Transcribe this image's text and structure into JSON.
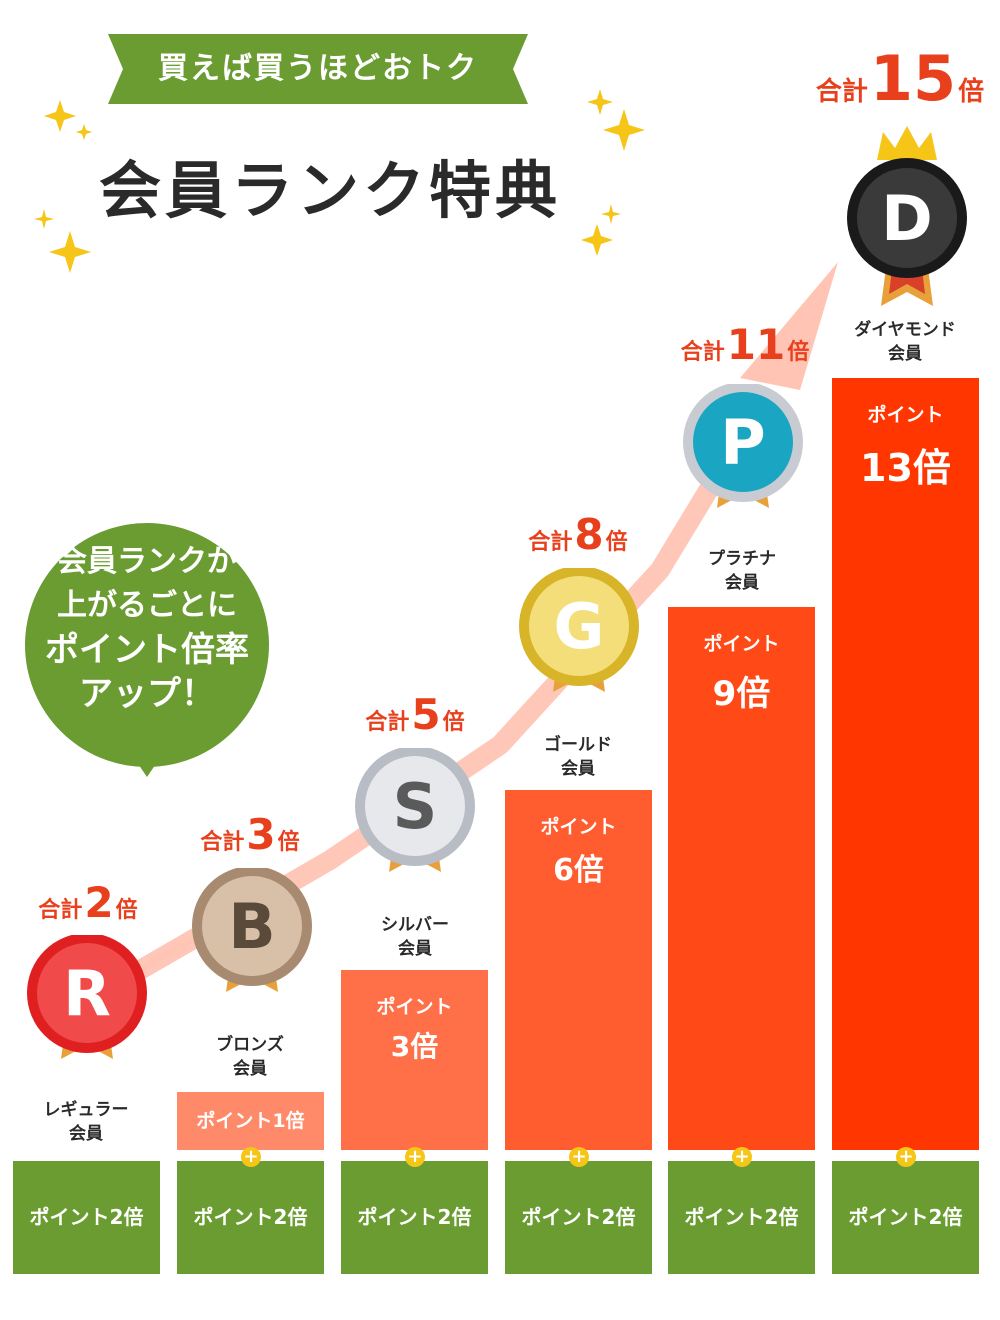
{
  "header": {
    "ribbon_text": "買えば買うほどおトク",
    "title": "会員ランク特典"
  },
  "bubble": {
    "lines": [
      "会員ランクが",
      "上がるごとに",
      "ポイント倍率",
      "アップ！"
    ]
  },
  "colors": {
    "green": "#6a9c32",
    "orange_red": "#e8401c",
    "bar_1": "#ff8a6a",
    "bar_2": "#ff7048",
    "bar_3": "#ff5c30",
    "bar_4": "#ff4a18",
    "bar_5": "#ff3600",
    "arrow": "#ffc4b4",
    "sparkle": "#f5c518"
  },
  "plus_symbol": "+",
  "ranks": [
    {
      "letter": "R",
      "name_line1": "レギュラー",
      "name_line2": "会員",
      "total_prefix": "合計",
      "total_value": "2",
      "total_suffix": "倍",
      "base_label": "ポイント2倍",
      "medal_color": "#e02020",
      "medal_icon": "ruby-medal-icon"
    },
    {
      "letter": "B",
      "name_line1": "ブロンズ",
      "name_line2": "会員",
      "total_prefix": "合計",
      "total_value": "3",
      "total_suffix": "倍",
      "base_label": "ポイント2倍",
      "bonus_label": "ポイント1倍",
      "medal_color": "#b8987e",
      "medal_icon": "bronze-medal-icon"
    },
    {
      "letter": "S",
      "name_line1": "シルバー",
      "name_line2": "会員",
      "total_prefix": "合計",
      "total_value": "5",
      "total_suffix": "倍",
      "base_label": "ポイント2倍",
      "bonus_label": "ポイント",
      "bonus_value": "3倍",
      "medal_color": "#c8ccd2",
      "medal_icon": "silver-medal-icon"
    },
    {
      "letter": "G",
      "name_line1": "ゴールド",
      "name_line2": "会員",
      "total_prefix": "合計",
      "total_value": "8",
      "total_suffix": "倍",
      "base_label": "ポイント2倍",
      "bonus_label": "ポイント",
      "bonus_value": "6倍",
      "medal_color": "#e6c536",
      "medal_icon": "gold-medal-icon"
    },
    {
      "letter": "P",
      "name_line1": "プラチナ",
      "name_line2": "会員",
      "total_prefix": "合計",
      "total_value": "11",
      "total_suffix": "倍",
      "base_label": "ポイント2倍",
      "bonus_label": "ポイント",
      "bonus_value": "9倍",
      "medal_color": "#1aa6c2",
      "medal_icon": "platinum-medal-icon"
    },
    {
      "letter": "D",
      "name_line1": "ダイヤモンド",
      "name_line2": "会員",
      "total_prefix": "合計",
      "total_value": "15",
      "total_suffix": "倍",
      "base_label": "ポイント2倍",
      "bonus_label": "ポイント",
      "bonus_value": "13倍",
      "medal_color": "#2a2a2a",
      "medal_icon": "diamond-medal-icon"
    }
  ]
}
